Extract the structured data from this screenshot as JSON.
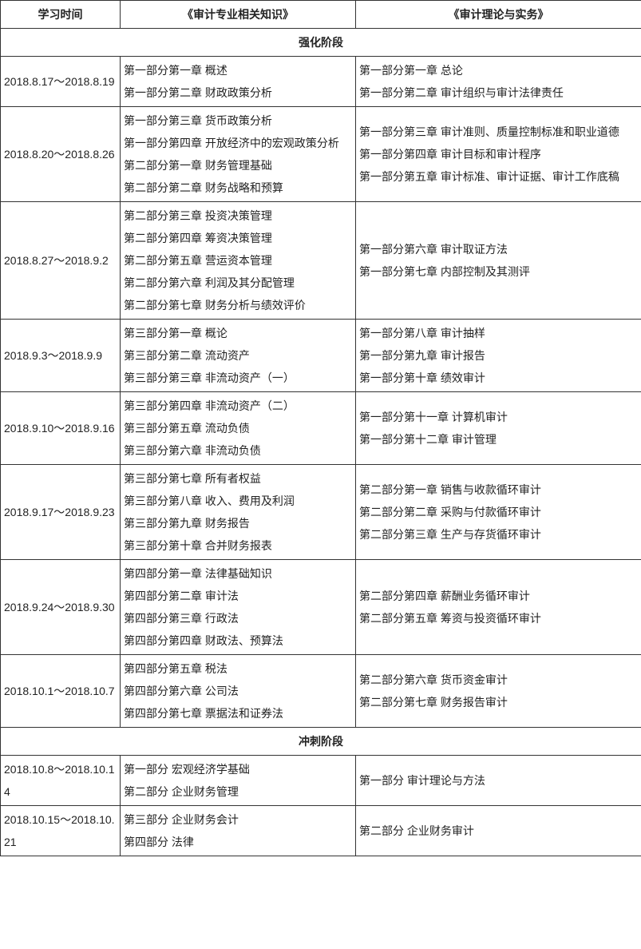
{
  "headers": {
    "time": "学习时间",
    "subject1": "《审计专业相关知识》",
    "subject2": "《审计理论与实务》"
  },
  "sections": {
    "intensive": "强化阶段",
    "sprint": "冲刺阶段"
  },
  "rows": {
    "r1": {
      "time": "2018.8.17～2018.8.19",
      "left": "第一部分第一章 概述\n第一部分第二章 财政政策分析",
      "right": "第一部分第一章 总论\n第一部分第二章 审计组织与审计法律责任"
    },
    "r2": {
      "time": "2018.8.20～2018.8.26",
      "left": "第一部分第三章 货币政策分析\n第一部分第四章 开放经济中的宏观政策分析\n第二部分第一章 财务管理基础\n第二部分第二章 财务战略和预算",
      "right": "第一部分第三章 审计准则、质量控制标准和职业道德\n第一部分第四章 审计目标和审计程序\n第一部分第五章 审计标准、审计证据、审计工作底稿"
    },
    "r3": {
      "time": "2018.8.27～2018.9.2",
      "left": "第二部分第三章 投资决策管理\n第二部分第四章 筹资决策管理\n第二部分第五章 营运资本管理\n第二部分第六章 利润及其分配管理\n第二部分第七章 财务分析与绩效评价",
      "right": "第一部分第六章 审计取证方法\n第一部分第七章 内部控制及其测评"
    },
    "r4": {
      "time": "2018.9.3～2018.9.9",
      "left": "第三部分第一章 概论\n第三部分第二章 流动资产\n第三部分第三章 非流动资产（一）",
      "right": "第一部分第八章 审计抽样\n第一部分第九章 审计报告\n第一部分第十章 绩效审计"
    },
    "r5": {
      "time": "2018.9.10～2018.9.16",
      "left": "第三部分第四章 非流动资产（二）\n第三部分第五章 流动负债\n第三部分第六章 非流动负债",
      "right": "第一部分第十一章 计算机审计\n第一部分第十二章 审计管理"
    },
    "r6": {
      "time": "2018.9.17～2018.9.23",
      "left": "第三部分第七章 所有者权益\n第三部分第八章 收入、费用及利润\n第三部分第九章 财务报告\n第三部分第十章 合并财务报表",
      "right": "第二部分第一章 销售与收款循环审计\n第二部分第二章 采购与付款循环审计\n第二部分第三章 生产与存货循环审计"
    },
    "r7": {
      "time": "2018.9.24～2018.9.30",
      "left": "第四部分第一章 法律基础知识\n第四部分第二章 审计法\n第四部分第三章 行政法\n第四部分第四章 财政法、预算法",
      "right": "第二部分第四章 薪酬业务循环审计\n第二部分第五章 筹资与投资循环审计"
    },
    "r8": {
      "time": "2018.10.1～2018.10.7",
      "left": "第四部分第五章 税法\n第四部分第六章 公司法\n第四部分第七章 票据法和证券法",
      "right": "第二部分第六章 货币资金审计\n第二部分第七章 财务报告审计"
    },
    "r9": {
      "time": "2018.10.8～2018.10.14",
      "left": "第一部分 宏观经济学基础\n第二部分 企业财务管理",
      "right": "第一部分 审计理论与方法"
    },
    "r10": {
      "time": "2018.10.15～2018.10.21",
      "left": "第三部分 企业财务会计\n第四部分 法律",
      "right": "第二部分 企业财务审计"
    }
  }
}
